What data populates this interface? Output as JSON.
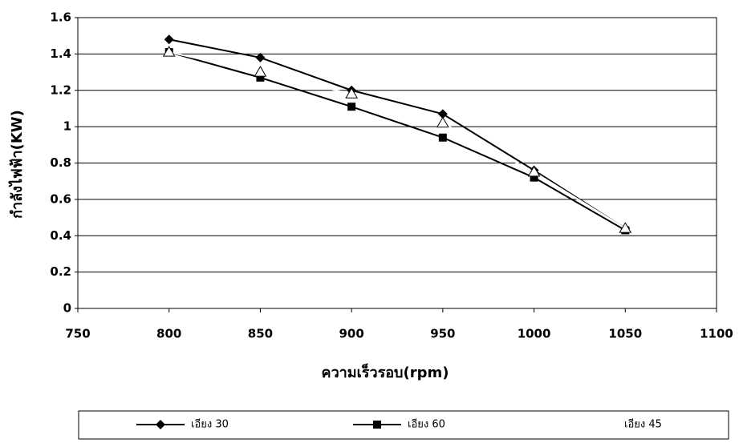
{
  "chart_data": {
    "type": "line",
    "x_label": "ความเร็วรอบ(rpm)",
    "y_label": "กำลังไฟฟ้า(KW)",
    "x": [
      800,
      850,
      900,
      950,
      1000,
      1050
    ],
    "series": [
      {
        "name": "เอียง 30",
        "color": "#000000",
        "marker": "diamond",
        "values": [
          1.48,
          1.38,
          1.2,
          1.07,
          0.76,
          0.44
        ]
      },
      {
        "name": "เอียง 60",
        "color": "#000000",
        "marker": "square",
        "values": [
          1.41,
          1.27,
          1.11,
          0.94,
          0.72,
          0.43
        ]
      },
      {
        "name": "เอียง 45",
        "color": "#ffffff",
        "marker": "triangle",
        "values": [
          1.41,
          1.3,
          1.18,
          1.02,
          0.75,
          0.44
        ]
      }
    ],
    "xlim": [
      750,
      1100
    ],
    "xticks": [
      750,
      800,
      850,
      900,
      950,
      1000,
      1050,
      1100
    ],
    "ylim": [
      0,
      1.6
    ],
    "yticks": [
      0,
      0.2,
      0.4,
      0.6,
      0.8,
      1,
      1.2,
      1.4,
      1.6
    ],
    "grid": true,
    "legend": "bottom"
  }
}
